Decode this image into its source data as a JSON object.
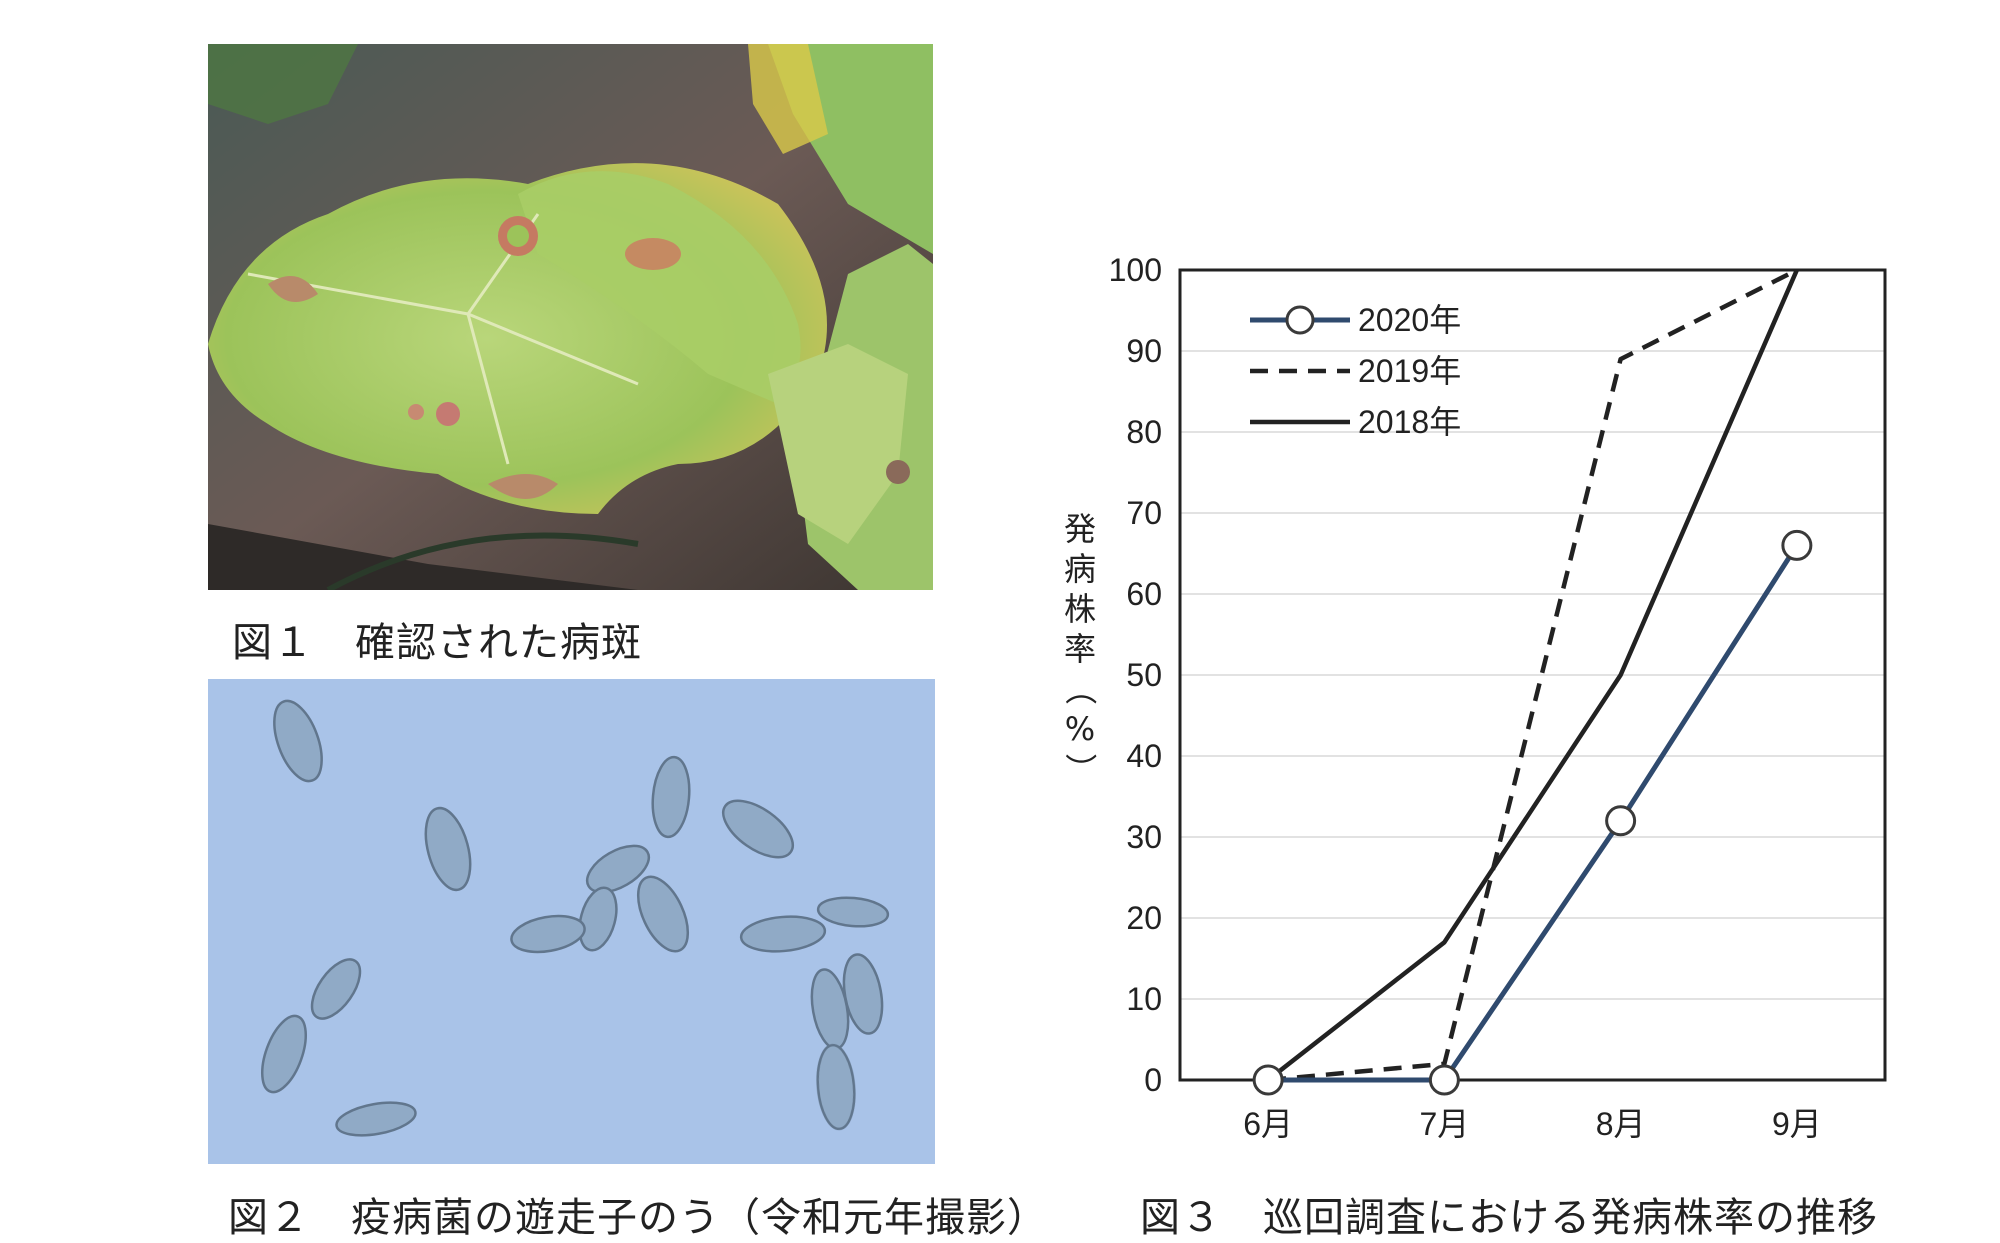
{
  "figure1": {
    "caption": "図１　確認された病斑"
  },
  "figure2": {
    "caption": "図２　疫病菌の遊走子のう（令和元年撮影）"
  },
  "figure3": {
    "caption": "図３　巡回調査における発病株率の推移"
  },
  "chart_data": {
    "type": "line",
    "categories": [
      "6月",
      "7月",
      "8月",
      "9月"
    ],
    "ylabel": "発病株率（%）",
    "ylim": [
      0,
      100
    ],
    "yticks": [
      0,
      10,
      20,
      30,
      40,
      50,
      60,
      70,
      80,
      90,
      100
    ],
    "grid": true,
    "legend_position": "top-left",
    "series": [
      {
        "name": "2020年",
        "values": [
          0,
          0,
          32,
          66
        ],
        "style": "solid-marker",
        "color": "#2f4a6e"
      },
      {
        "name": "2019年",
        "values": [
          0,
          2,
          89,
          100
        ],
        "style": "dashed",
        "color": "#222222"
      },
      {
        "name": "2018年",
        "values": [
          0,
          17,
          50,
          100
        ],
        "style": "solid",
        "color": "#222222"
      }
    ]
  }
}
